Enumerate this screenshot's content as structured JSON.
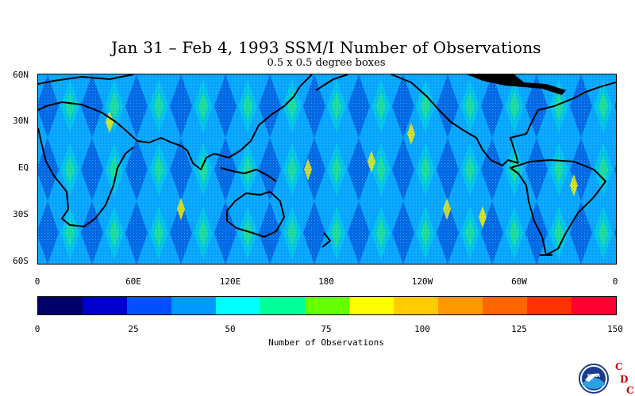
{
  "title": "Jan 31 – Feb 4, 1993 SSM/I Number of Observations",
  "subtitle": "0.5 x 0.5 degree boxes",
  "map": {
    "lat_labels": [
      "60N",
      "30N",
      "EQ",
      "30S",
      "60S"
    ],
    "lon_labels": [
      "0",
      "60E",
      "120E",
      "180",
      "120W",
      "60W",
      "0"
    ]
  },
  "colorbar": {
    "colors": [
      "#000066",
      "#0000cc",
      "#0050ff",
      "#0099ff",
      "#00ffff",
      "#00ff99",
      "#66ff00",
      "#ffff00",
      "#ffcc00",
      "#ff9900",
      "#ff6600",
      "#ff3300",
      "#ff0033"
    ],
    "tick_labels": [
      "0",
      "25",
      "50",
      "75",
      "100",
      "125",
      "150"
    ],
    "title": "Number of Observations"
  },
  "logo": {
    "emblem_text": "NOAA",
    "letters": [
      "C",
      "D",
      "C"
    ]
  },
  "chart_data": {
    "type": "heatmap",
    "title": "Jan 31 – Feb 4, 1993 SSM/I Number of Observations",
    "subtitle": "0.5 x 0.5 degree boxes",
    "x_ticks": [
      "0",
      "60E",
      "120E",
      "180",
      "120W",
      "60W",
      "0"
    ],
    "y_ticks": [
      "60N",
      "30N",
      "EQ",
      "30S",
      "60S"
    ],
    "lon_range": [
      0,
      360
    ],
    "lat_range": [
      -60,
      60
    ],
    "value_range": [
      0,
      150
    ],
    "colorbar_label": "Number of Observations"
  }
}
